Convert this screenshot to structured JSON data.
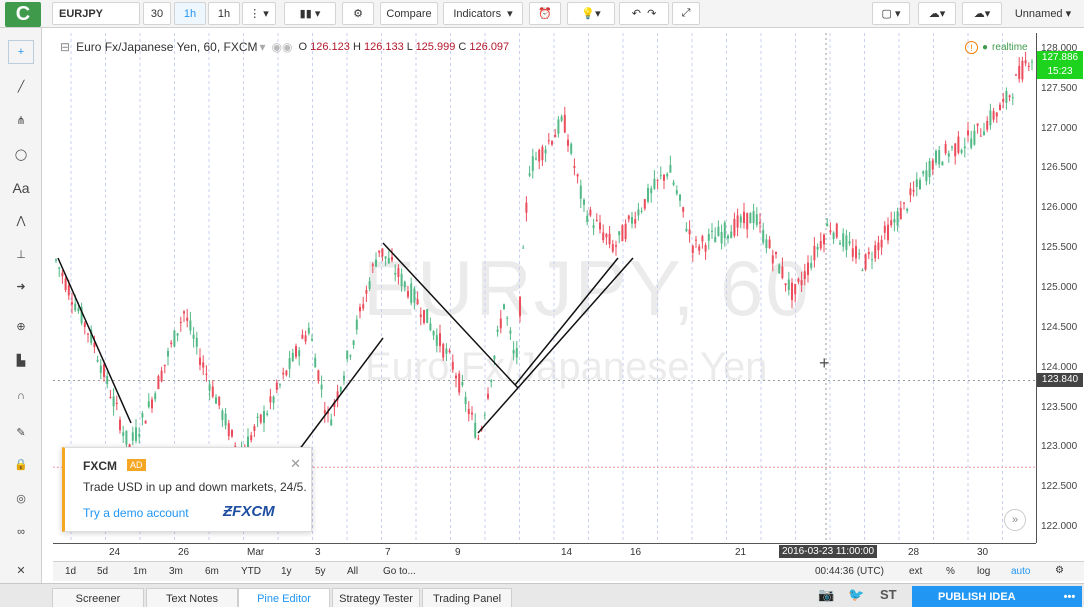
{
  "app": {
    "logo": "C",
    "layout_name": "Unnamed"
  },
  "toolbar": {
    "symbol": "EURJPY",
    "interval_30": "30",
    "interval_1h": "1h",
    "interval_1h_b": "1h",
    "compare": "Compare",
    "indicators": "Indicators"
  },
  "legend": {
    "title": "Euro Fx/Japanese Yen, 60, FXCM",
    "o_label": "O",
    "o": "126.123",
    "h_label": "H",
    "h": "126.133",
    "l_label": "L",
    "l": "125.999",
    "c_label": "C",
    "c": "126.097",
    "realtime": "realtime"
  },
  "watermark": {
    "symbol": "EURJPY, 60",
    "name": "Euro Fx/Japanese Yen"
  },
  "price_scale": {
    "labels": [
      "128.000",
      "127.500",
      "127.000",
      "126.500",
      "126.000",
      "125.500",
      "125.000",
      "124.500",
      "124.000",
      "123.500",
      "123.000",
      "122.500",
      "122.000"
    ],
    "last_price": "127.886",
    "countdown": "15:23",
    "crosshair_price": "123.840"
  },
  "time_scale": {
    "labels": [
      "24",
      "26",
      "Mar",
      "3",
      "7",
      "9",
      "14",
      "16",
      "21",
      "28",
      "30"
    ],
    "crosshair_time": "2016-03-23 11:00:00"
  },
  "bottom_bar": {
    "ranges": [
      "1d",
      "5d",
      "1m",
      "3m",
      "6m",
      "YTD",
      "1y",
      "5y",
      "All"
    ],
    "goto": "Go to...",
    "clock": "00:44:36 (UTC)",
    "ext": "ext",
    "pct": "%",
    "log": "log",
    "auto": "auto"
  },
  "tabs": [
    "Screener",
    "Text Notes",
    "Pine Editor",
    "Strategy Tester",
    "Trading Panel"
  ],
  "publish": "PUBLISH IDEA",
  "ad": {
    "brand": "FXCM",
    "badge": "AD",
    "text": "Trade USD in up and down markets, 24/5.",
    "cta": "Try a demo account",
    "logo": "FXCM"
  },
  "colors": {
    "up": "#53b987",
    "down": "#eb4d5c",
    "accent": "#2196f3",
    "logo_bg": "#3f9a4c"
  },
  "chart_data": {
    "type": "candlestick",
    "ylim": [
      121.8,
      128.2
    ],
    "trend_lines": [
      {
        "from": [
          "Feb 22",
          "125.5"
        ],
        "to": [
          "Feb 24",
          "123.3"
        ]
      }
    ]
  }
}
